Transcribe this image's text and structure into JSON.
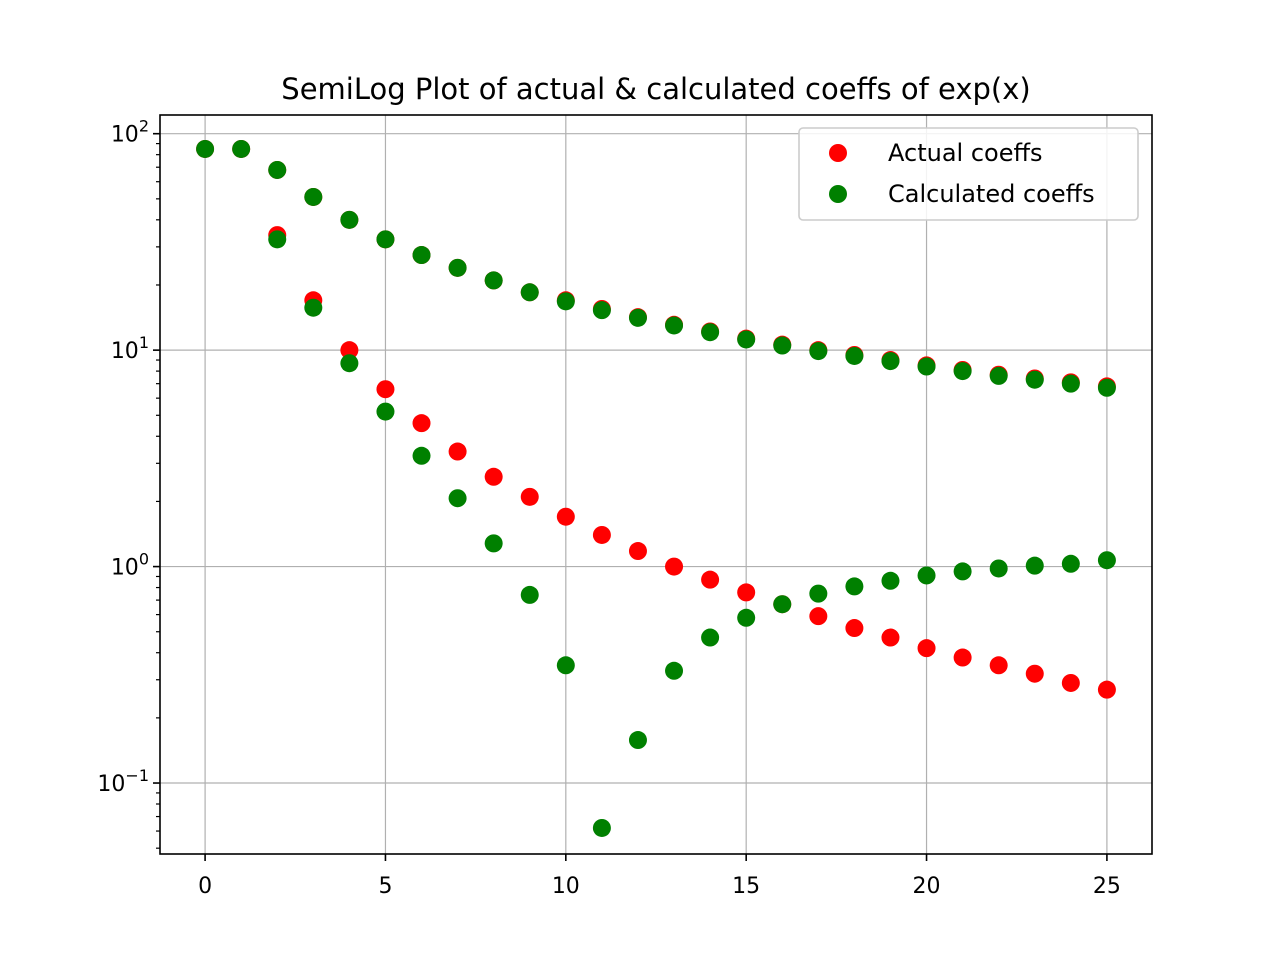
{
  "chart_data": {
    "type": "scatter",
    "title": "SemiLog Plot of actual & calculated coeffs of exp(x)",
    "xlabel": "",
    "ylabel": "",
    "yscale": "log",
    "xlim": [
      -1.25,
      26.25
    ],
    "ylim": [
      0.047,
      122
    ],
    "grid": true,
    "legend_position": "top-right",
    "x_ticks": [
      {
        "value": 0,
        "label": "0"
      },
      {
        "value": 5,
        "label": "5"
      },
      {
        "value": 10,
        "label": "10"
      },
      {
        "value": 15,
        "label": "15"
      },
      {
        "value": 20,
        "label": "20"
      },
      {
        "value": 25,
        "label": "25"
      }
    ],
    "y_ticks": [
      {
        "value": 0.1,
        "base": "10",
        "exp": "−1"
      },
      {
        "value": 1,
        "base": "10",
        "exp": "0"
      },
      {
        "value": 10,
        "base": "10",
        "exp": "1"
      },
      {
        "value": 100,
        "base": "10",
        "exp": "2"
      }
    ],
    "series": [
      {
        "name": "Actual coeffs",
        "color": "#ff0000",
        "points": [
          [
            0,
            85
          ],
          [
            1,
            85
          ],
          [
            2,
            34
          ],
          [
            3,
            17
          ],
          [
            4,
            10
          ],
          [
            5,
            6.6
          ],
          [
            6,
            4.6
          ],
          [
            7,
            3.4
          ],
          [
            8,
            2.6
          ],
          [
            9,
            2.1
          ],
          [
            10,
            1.7
          ],
          [
            11,
            1.4
          ],
          [
            12,
            1.18
          ],
          [
            13,
            1.0
          ],
          [
            14,
            0.87
          ],
          [
            15,
            0.76
          ],
          [
            16,
            0.67
          ],
          [
            17,
            0.59
          ],
          [
            18,
            0.52
          ],
          [
            19,
            0.47
          ],
          [
            20,
            0.42
          ],
          [
            21,
            0.38
          ],
          [
            22,
            0.35
          ],
          [
            23,
            0.32
          ],
          [
            24,
            0.29
          ],
          [
            25,
            0.27
          ],
          [
            2,
            68
          ],
          [
            3,
            51
          ],
          [
            4,
            40
          ],
          [
            5,
            32.5
          ],
          [
            6,
            27.5
          ],
          [
            7,
            24
          ],
          [
            8,
            21
          ],
          [
            9,
            18.5
          ],
          [
            10,
            17
          ],
          [
            11,
            15.5
          ],
          [
            12,
            14.2
          ],
          [
            13,
            13.1
          ],
          [
            14,
            12.2
          ],
          [
            15,
            11.3
          ],
          [
            16,
            10.6
          ],
          [
            17,
            10
          ],
          [
            18,
            9.5
          ],
          [
            19,
            9
          ],
          [
            20,
            8.5
          ],
          [
            21,
            8.1
          ],
          [
            22,
            7.7
          ],
          [
            23,
            7.4
          ],
          [
            24,
            7.1
          ],
          [
            25,
            6.8
          ]
        ]
      },
      {
        "name": "Calculated coeffs",
        "color": "#008000",
        "points": [
          [
            0,
            85
          ],
          [
            1,
            85
          ],
          [
            2,
            32.5
          ],
          [
            3,
            15.7
          ],
          [
            4,
            8.7
          ],
          [
            5,
            5.2
          ],
          [
            6,
            3.25
          ],
          [
            7,
            2.07
          ],
          [
            8,
            1.28
          ],
          [
            9,
            0.74
          ],
          [
            10,
            0.35
          ],
          [
            11,
            0.062
          ],
          [
            12,
            0.158
          ],
          [
            13,
            0.33
          ],
          [
            14,
            0.47
          ],
          [
            15,
            0.58
          ],
          [
            16,
            0.67
          ],
          [
            17,
            0.75
          ],
          [
            18,
            0.81
          ],
          [
            19,
            0.86
          ],
          [
            20,
            0.91
          ],
          [
            21,
            0.95
          ],
          [
            22,
            0.98
          ],
          [
            23,
            1.01
          ],
          [
            24,
            1.03
          ],
          [
            25,
            1.07
          ],
          [
            2,
            68
          ],
          [
            3,
            51
          ],
          [
            4,
            40
          ],
          [
            5,
            32.5
          ],
          [
            6,
            27.5
          ],
          [
            7,
            24
          ],
          [
            8,
            21
          ],
          [
            9,
            18.5
          ],
          [
            10,
            16.8
          ],
          [
            11,
            15.3
          ],
          [
            12,
            14.1
          ],
          [
            13,
            13.0
          ],
          [
            14,
            12.1
          ],
          [
            15,
            11.2
          ],
          [
            16,
            10.5
          ],
          [
            17,
            9.9
          ],
          [
            18,
            9.4
          ],
          [
            19,
            8.9
          ],
          [
            20,
            8.4
          ],
          [
            21,
            8.0
          ],
          [
            22,
            7.6
          ],
          [
            23,
            7.3
          ],
          [
            24,
            7.0
          ],
          [
            25,
            6.7
          ]
        ]
      }
    ]
  }
}
